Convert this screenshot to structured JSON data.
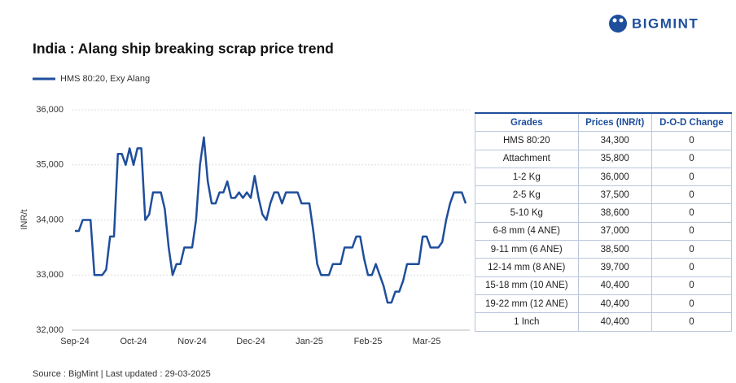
{
  "brand": "BIGMINT",
  "chart_data": {
    "type": "line",
    "title": "India : Alang ship breaking scrap price trend",
    "y_label": "INR/t",
    "source": "Source : BigMint | Last updated : 29-03-2025",
    "categories": [
      "Sep-24",
      null,
      null,
      null,
      null,
      null,
      null,
      null,
      null,
      null,
      null,
      null,
      null,
      null,
      null,
      "Oct-24",
      null,
      null,
      null,
      null,
      null,
      null,
      null,
      null,
      null,
      null,
      null,
      null,
      null,
      null,
      "Nov-24",
      null,
      null,
      null,
      null,
      null,
      null,
      null,
      null,
      null,
      null,
      null,
      null,
      null,
      null,
      "Dec-24",
      null,
      null,
      null,
      null,
      null,
      null,
      null,
      null,
      null,
      null,
      null,
      null,
      null,
      null,
      "Jan-25",
      null,
      null,
      null,
      null,
      null,
      null,
      null,
      null,
      null,
      null,
      null,
      null,
      null,
      null,
      "Feb-25",
      null,
      null,
      null,
      null,
      null,
      null,
      null,
      null,
      null,
      null,
      null,
      null,
      null,
      null,
      "Mar-25",
      null,
      null,
      null,
      null,
      null,
      null,
      null,
      null,
      null,
      null
    ],
    "series": [
      {
        "name": "HMS 80:20, Exy Alang",
        "color": "#1f4e9c",
        "values": [
          33800,
          33800,
          34000,
          34000,
          34000,
          33000,
          33000,
          33000,
          33100,
          33700,
          33700,
          35200,
          35200,
          35000,
          35300,
          35000,
          35300,
          35300,
          34000,
          34100,
          34500,
          34500,
          34500,
          34200,
          33500,
          33000,
          33200,
          33200,
          33500,
          33500,
          33500,
          34000,
          35000,
          35500,
          34700,
          34300,
          34300,
          34500,
          34500,
          34700,
          34400,
          34400,
          34500,
          34400,
          34500,
          34400,
          34800,
          34400,
          34100,
          34000,
          34300,
          34500,
          34500,
          34300,
          34500,
          34500,
          34500,
          34500,
          34300,
          34300,
          34300,
          33800,
          33200,
          33000,
          33000,
          33000,
          33200,
          33200,
          33200,
          33500,
          33500,
          33500,
          33700,
          33700,
          33300,
          33000,
          33000,
          33200,
          33000,
          32800,
          32500,
          32500,
          32700,
          32700,
          32900,
          33200,
          33200,
          33200,
          33200,
          33700,
          33700,
          33500,
          33500,
          33500,
          33600,
          34000,
          34300,
          34500,
          34500,
          34500,
          34300
        ]
      }
    ],
    "ylim": [
      32000,
      36000
    ],
    "yticks": [
      {
        "value": 32000,
        "label": "32,000"
      },
      {
        "value": 33000,
        "label": "33,000"
      },
      {
        "value": 34000,
        "label": "34,000"
      },
      {
        "value": 35000,
        "label": "35,000"
      },
      {
        "value": 36000,
        "label": "36,000"
      }
    ],
    "grid": true
  },
  "table": {
    "columns": [
      "Grades",
      "Prices (INR/t)",
      "D-O-D Change"
    ],
    "rows": [
      [
        "HMS 80:20",
        "34,300",
        "0"
      ],
      [
        "Attachment",
        "35,800",
        "0"
      ],
      [
        "1-2 Kg",
        "36,000",
        "0"
      ],
      [
        "2-5 Kg",
        "37,500",
        "0"
      ],
      [
        "5-10 Kg",
        "38,600",
        "0"
      ],
      [
        "6-8 mm (4 ANE)",
        "37,000",
        "0"
      ],
      [
        "9-11 mm (6 ANE)",
        "38,500",
        "0"
      ],
      [
        "12-14 mm (8 ANE)",
        "39,700",
        "0"
      ],
      [
        "15-18 mm (10 ANE)",
        "40,400",
        "0"
      ],
      [
        "19-22 mm (12 ANE)",
        "40,400",
        "0"
      ],
      [
        "1 Inch",
        "40,400",
        "0"
      ]
    ]
  }
}
